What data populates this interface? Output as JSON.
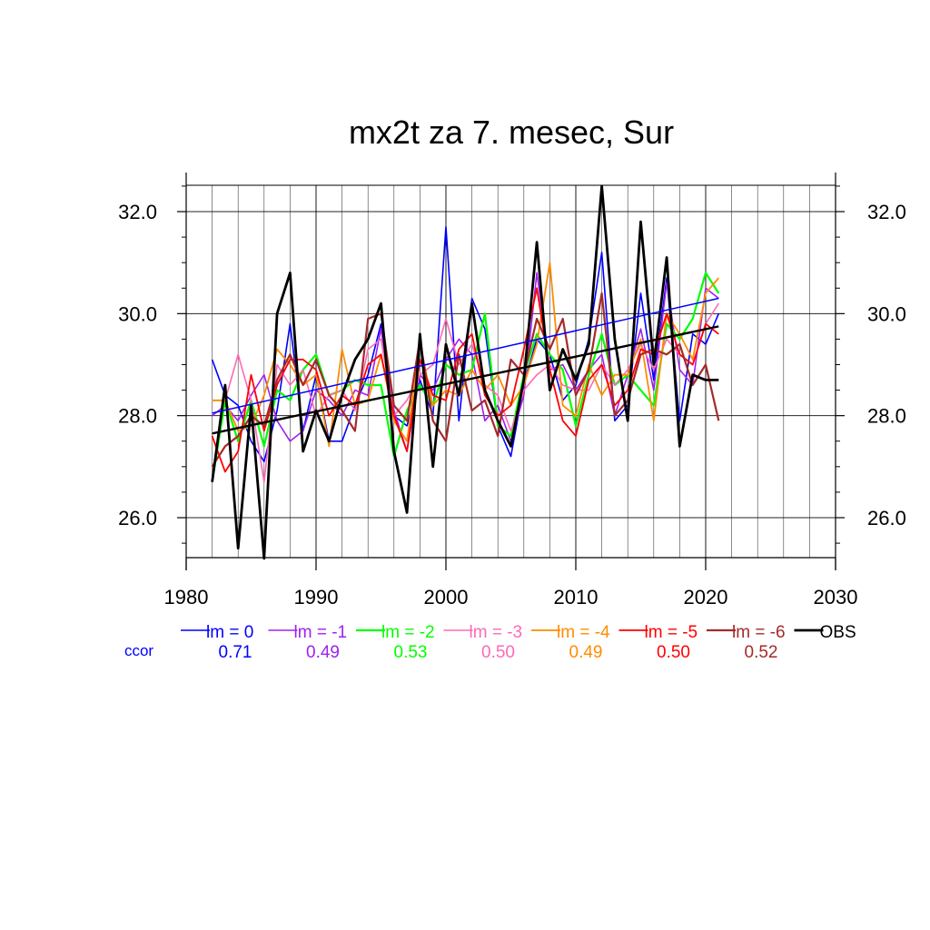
{
  "chart_data": {
    "type": "line",
    "title": "mx2t za 7. mesec, Sur",
    "xlabel": "",
    "ylabel": "",
    "xlim": [
      1980,
      2030
    ],
    "ylim": [
      25.2,
      32.5
    ],
    "x_ticks": [
      1980,
      1990,
      2000,
      2010,
      2020,
      2030
    ],
    "x_tick_labels": [
      "1980",
      "1990",
      "2000",
      "2010",
      "2020",
      "2030"
    ],
    "y_ticks": [
      26.0,
      28.0,
      30.0,
      32.0
    ],
    "y_tick_labels": [
      "26.0",
      "28.0",
      "30.0",
      "32.0"
    ],
    "grid": true,
    "legend_position": "bottom",
    "ccor_label": "ccor",
    "ccor_color": "#0000ff",
    "x": [
      1982,
      1983,
      1984,
      1985,
      1986,
      1987,
      1988,
      1989,
      1990,
      1991,
      1992,
      1993,
      1994,
      1995,
      1996,
      1997,
      1998,
      1999,
      2000,
      2001,
      2002,
      2003,
      2004,
      2005,
      2006,
      2007,
      2008,
      2009,
      2010,
      2011,
      2012,
      2013,
      2014,
      2015,
      2016,
      2017,
      2018,
      2019,
      2020,
      2021
    ],
    "series": [
      {
        "name": "lm = 0",
        "ccor": "0.71",
        "color": "#0000ff",
        "width": 1.6,
        "values": [
          29.1,
          28.4,
          28.2,
          27.5,
          27.1,
          28.1,
          29.8,
          27.7,
          28.8,
          27.5,
          27.5,
          28.2,
          28.8,
          29.8,
          28.0,
          27.8,
          28.7,
          28.0,
          31.7,
          27.9,
          30.3,
          29.7,
          27.8,
          27.2,
          28.6,
          29.5,
          29.2,
          28.3,
          28.6,
          29.5,
          31.2,
          27.9,
          28.2,
          30.4,
          28.7,
          30.7,
          27.9,
          29.6,
          29.4,
          30.0
        ],
        "trend": [
          28.05,
          30.3
        ]
      },
      {
        "name": "lm = -1",
        "ccor": "0.49",
        "color": "#a020f0",
        "width": 1.6,
        "values": [
          28.0,
          28.2,
          27.9,
          28.4,
          28.8,
          27.9,
          27.5,
          27.7,
          28.5,
          28.3,
          28.0,
          28.5,
          28.4,
          29.7,
          28.1,
          27.3,
          28.8,
          28.5,
          29.1,
          29.5,
          29.2,
          27.9,
          28.2,
          27.5,
          28.4,
          30.8,
          28.9,
          29.0,
          28.5,
          28.9,
          29.2,
          28.0,
          28.8,
          29.7,
          28.5,
          30.6,
          28.9,
          28.6,
          30.5,
          30.3
        ]
      },
      {
        "name": "lm = -2",
        "ccor": "0.53",
        "color": "#00ff00",
        "width": 2.2,
        "values": [
          26.7,
          28.3,
          27.5,
          28.3,
          27.4,
          28.5,
          28.3,
          28.9,
          29.2,
          28.4,
          28.5,
          28.7,
          28.6,
          28.6,
          27.2,
          28.1,
          28.6,
          28.2,
          29.0,
          28.8,
          28.9,
          30.0,
          27.8,
          27.6,
          28.8,
          29.6,
          29.2,
          28.9,
          27.8,
          28.8,
          29.6,
          28.6,
          28.8,
          28.5,
          28.2,
          29.8,
          29.5,
          29.9,
          30.8,
          30.4
        ]
      },
      {
        "name": "lm = -3",
        "ccor": "0.50",
        "color": "#ff69b4",
        "width": 1.6,
        "values": [
          28.3,
          28.3,
          29.2,
          28.3,
          26.7,
          29.0,
          28.6,
          28.9,
          28.0,
          28.4,
          28.5,
          28.1,
          29.3,
          29.5,
          28.0,
          28.3,
          28.8,
          29.0,
          29.9,
          29.0,
          29.4,
          28.6,
          28.4,
          27.7,
          28.5,
          28.8,
          29.0,
          28.6,
          28.5,
          28.5,
          29.0,
          28.6,
          28.9,
          29.4,
          28.9,
          29.5,
          29.2,
          29.0,
          29.8,
          30.2
        ]
      },
      {
        "name": "lm = -4",
        "ccor": "0.49",
        "color": "#ff8c00",
        "width": 1.8,
        "values": [
          28.3,
          28.3,
          27.7,
          27.8,
          28.4,
          29.3,
          29.0,
          28.6,
          28.8,
          27.4,
          29.3,
          28.2,
          28.3,
          29.2,
          27.9,
          27.5,
          29.4,
          28.2,
          28.5,
          28.4,
          28.9,
          28.5,
          28.8,
          28.2,
          28.6,
          29.4,
          31.0,
          28.2,
          28.0,
          29.0,
          28.4,
          28.8,
          28.8,
          29.5,
          27.9,
          30.0,
          29.6,
          29.1,
          30.4,
          30.7
        ]
      },
      {
        "name": "lm = -5",
        "ccor": "0.50",
        "color": "#ff0000",
        "width": 1.8,
        "values": [
          27.6,
          26.9,
          27.3,
          28.8,
          27.7,
          28.6,
          29.1,
          29.1,
          28.9,
          28.0,
          28.4,
          28.2,
          29.0,
          29.2,
          28.0,
          27.3,
          29.1,
          28.4,
          28.3,
          29.3,
          29.6,
          28.4,
          28.0,
          28.2,
          29.3,
          30.5,
          28.9,
          27.9,
          27.6,
          28.7,
          29.0,
          28.2,
          28.5,
          29.3,
          29.2,
          30.0,
          29.2,
          29.0,
          29.8,
          29.6
        ]
      },
      {
        "name": "lm = -6",
        "ccor": "0.52",
        "color": "#a52a2a",
        "width": 2.2,
        "values": [
          27.0,
          27.4,
          27.6,
          28.0,
          27.8,
          28.7,
          29.2,
          28.6,
          29.1,
          28.4,
          28.1,
          27.7,
          29.9,
          30.0,
          28.2,
          27.9,
          29.5,
          27.9,
          27.5,
          29.2,
          28.1,
          28.3,
          27.6,
          29.1,
          28.8,
          29.9,
          29.3,
          29.9,
          28.4,
          28.9,
          30.4,
          28.0,
          28.3,
          29.2,
          29.3,
          29.2,
          29.4,
          28.6,
          29.0,
          27.9
        ]
      },
      {
        "name": "OBS",
        "ccor": "",
        "color": "#000000",
        "width": 2.8,
        "values": [
          26.7,
          28.6,
          25.4,
          28.2,
          25.2,
          30.0,
          30.8,
          27.3,
          28.1,
          27.5,
          28.4,
          29.1,
          29.5,
          30.2,
          27.3,
          26.1,
          29.6,
          27.0,
          29.4,
          28.4,
          30.2,
          28.5,
          27.9,
          27.4,
          28.7,
          31.4,
          28.5,
          29.3,
          28.7,
          29.4,
          32.5,
          29.5,
          27.9,
          31.8,
          29.0,
          31.1,
          27.4,
          28.8,
          28.7,
          28.7
        ],
        "trend": [
          27.65,
          29.75
        ]
      }
    ]
  }
}
